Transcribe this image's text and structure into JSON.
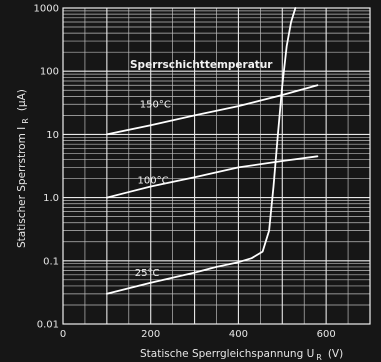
{
  "chart_data": {
    "type": "line",
    "xlabel_main": "Statische Sperrgleichspannung U",
    "xlabel_sub": "R",
    "xlabel_unit": "(V)",
    "ylabel_main": "Statischer Sperrstrom I",
    "ylabel_sub": "R",
    "ylabel_unit": "(µA)",
    "xlim": [
      0,
      700
    ],
    "ylim": [
      0.01,
      1000
    ],
    "yscale": "log",
    "grid": true,
    "x_ticks": [
      0,
      200,
      400,
      600
    ],
    "x_tick_labels": [
      "0",
      "200",
      "400",
      "600"
    ],
    "y_ticks": [
      0.01,
      0.1,
      1,
      10,
      100,
      1000
    ],
    "y_tick_labels": [
      "0.01",
      "0.1",
      "1.0",
      "10",
      "100",
      "1000"
    ],
    "annotation": "Sperrschichttemperatur",
    "series": [
      {
        "name": "150°C",
        "label": "150°C",
        "x": [
          100,
          200,
          300,
          400,
          500,
          580
        ],
        "y": [
          10,
          14,
          20,
          28,
          42,
          60
        ]
      },
      {
        "name": "100°C",
        "label": "100°C",
        "x": [
          100,
          200,
          300,
          400,
          500,
          580
        ],
        "y": [
          1.0,
          1.5,
          2.1,
          3.0,
          3.8,
          4.5
        ]
      },
      {
        "name": "25°C",
        "label": "25°C",
        "x": [
          100,
          200,
          300,
          350,
          400,
          430,
          455,
          470,
          480,
          490,
          500,
          510,
          520,
          530
        ],
        "y": [
          0.03,
          0.045,
          0.065,
          0.08,
          0.095,
          0.11,
          0.14,
          0.3,
          1.5,
          10,
          60,
          250,
          600,
          1000
        ]
      }
    ]
  }
}
